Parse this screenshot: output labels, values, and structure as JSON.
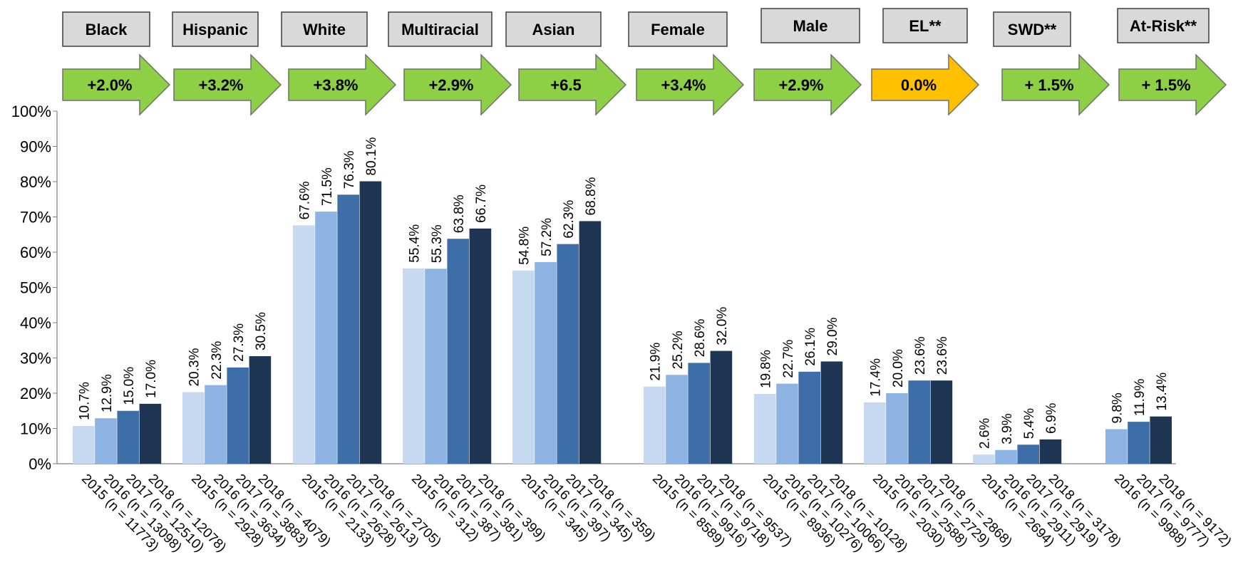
{
  "chart_data": {
    "type": "bar",
    "ylim": [
      0,
      100
    ],
    "yticks": [
      "0%",
      "10%",
      "20%",
      "30%",
      "40%",
      "50%",
      "60%",
      "70%",
      "80%",
      "90%",
      "100%"
    ],
    "grid": false,
    "colors": {
      "2015": "#c6d9f1",
      "2016": "#8db3e2",
      "2017": "#3e6ea8",
      "2018": "#1f3554",
      "arrow_up": "#8dd045",
      "arrow_flat": "#ffc000",
      "header_fill": "#d9d9d9"
    },
    "groups": [
      {
        "name": "Black",
        "change": "+2.0%",
        "trend": "up",
        "bars": [
          {
            "year": "2015",
            "label": "2015 (n = 11773)",
            "value": 10.7,
            "value_label": "10.7%"
          },
          {
            "year": "2016",
            "label": "2016 (n = 13098)",
            "value": 12.9,
            "value_label": "12.9%"
          },
          {
            "year": "2017",
            "label": "2017 (n = 12510)",
            "value": 15.0,
            "value_label": "15.0%"
          },
          {
            "year": "2018",
            "label": "2018 (n = 12078)",
            "value": 17.0,
            "value_label": "17.0%"
          }
        ]
      },
      {
        "name": "Hispanic",
        "change": "+3.2%",
        "trend": "up",
        "bars": [
          {
            "year": "2015",
            "label": "2015 (n = 2928)",
            "value": 20.3,
            "value_label": "20.3%"
          },
          {
            "year": "2016",
            "label": "2016 (n = 3634)",
            "value": 22.3,
            "value_label": "22.3%"
          },
          {
            "year": "2017",
            "label": "2017 (n = 3883)",
            "value": 27.3,
            "value_label": "27.3%"
          },
          {
            "year": "2018",
            "label": "2018 (n = 4079)",
            "value": 30.5,
            "value_label": "30.5%"
          }
        ]
      },
      {
        "name": "White",
        "change": "+3.8%",
        "trend": "up",
        "bars": [
          {
            "year": "2015",
            "label": "2015 (n = 2133)",
            "value": 67.6,
            "value_label": "67.6%"
          },
          {
            "year": "2016",
            "label": "2016 (n = 2628)",
            "value": 71.5,
            "value_label": "71.5%"
          },
          {
            "year": "2017",
            "label": "2017 (n = 2613)",
            "value": 76.3,
            "value_label": "76.3%"
          },
          {
            "year": "2018",
            "label": "2018 (n = 2705)",
            "value": 80.1,
            "value_label": "80.1%"
          }
        ]
      },
      {
        "name": "Multiracial",
        "change": "+2.9%",
        "trend": "up",
        "bars": [
          {
            "year": "2015",
            "label": "2015 (n = 312)",
            "value": 55.4,
            "value_label": "55.4%"
          },
          {
            "year": "2016",
            "label": "2016 (n = 387)",
            "value": 55.3,
            "value_label": "55.3%"
          },
          {
            "year": "2017",
            "label": "2017 (n = 381)",
            "value": 63.8,
            "value_label": "63.8%"
          },
          {
            "year": "2018",
            "label": "2018 (n = 399)",
            "value": 66.7,
            "value_label": "66.7%"
          }
        ]
      },
      {
        "name": "Asian",
        "change": "+6.5",
        "trend": "up",
        "bars": [
          {
            "year": "2015",
            "label": "2015 (n = 345)",
            "value": 54.8,
            "value_label": "54.8%"
          },
          {
            "year": "2016",
            "label": "2016 (n = 397)",
            "value": 57.2,
            "value_label": "57.2%"
          },
          {
            "year": "2017",
            "label": "2017 (n = 345)",
            "value": 62.3,
            "value_label": "62.3%"
          },
          {
            "year": "2018",
            "label": "2018 (n = 359)",
            "value": 68.8,
            "value_label": "68.8%"
          }
        ]
      },
      {
        "name": "Female",
        "change": "+3.4%",
        "trend": "up",
        "bars": [
          {
            "year": "2015",
            "label": "2015 (n = 8589)",
            "value": 21.9,
            "value_label": "21.9%"
          },
          {
            "year": "2016",
            "label": "2016 (n = 9916)",
            "value": 25.2,
            "value_label": "25.2%"
          },
          {
            "year": "2017",
            "label": "2017 (n = 9718)",
            "value": 28.6,
            "value_label": "28.6%"
          },
          {
            "year": "2018",
            "label": "2018 (n = 9537)",
            "value": 32.0,
            "value_label": "32.0%"
          }
        ]
      },
      {
        "name": "Male",
        "change": "+2.9%",
        "trend": "up",
        "bars": [
          {
            "year": "2015",
            "label": "2015 (n = 8936)",
            "value": 19.8,
            "value_label": "19.8%"
          },
          {
            "year": "2016",
            "label": "2016 (n = 10276)",
            "value": 22.7,
            "value_label": "22.7%"
          },
          {
            "year": "2017",
            "label": "2017 (n = 10066)",
            "value": 26.1,
            "value_label": "26.1%"
          },
          {
            "year": "2018",
            "label": "2018 (n = 10128)",
            "value": 29.0,
            "value_label": "29.0%"
          }
        ]
      },
      {
        "name": "EL**",
        "change": "0.0%",
        "trend": "flat",
        "bars": [
          {
            "year": "2015",
            "label": "2015 (n = 2030)",
            "value": 17.4,
            "value_label": "17.4%"
          },
          {
            "year": "2016",
            "label": "2016 (n = 2588)",
            "value": 20.0,
            "value_label": "20.0%"
          },
          {
            "year": "2017",
            "label": "2017 (n = 2729)",
            "value": 23.6,
            "value_label": "23.6%"
          },
          {
            "year": "2018",
            "label": "2018 (n = 2868)",
            "value": 23.6,
            "value_label": "23.6%"
          }
        ]
      },
      {
        "name": "SWD**",
        "change": "+ 1.5%",
        "trend": "up",
        "bars": [
          {
            "year": "2015",
            "label": "2015 (n = 2694)",
            "value": 2.6,
            "value_label": "2.6%"
          },
          {
            "year": "2016",
            "label": "2016 (n = 2911)",
            "value": 3.9,
            "value_label": "3.9%"
          },
          {
            "year": "2017",
            "label": "2017 (n = 2919)",
            "value": 5.4,
            "value_label": "5.4%"
          },
          {
            "year": "2018",
            "label": "2018 (n = 3178)",
            "value": 6.9,
            "value_label": "6.9%"
          }
        ]
      },
      {
        "name": "At-Risk**",
        "change": "+ 1.5%",
        "trend": "up",
        "bars": [
          {
            "year": "2016",
            "label": "2016 (n = 9988)",
            "value": 9.8,
            "value_label": "9.8%"
          },
          {
            "year": "2017",
            "label": "2017 (n = 9777)",
            "value": 11.9,
            "value_label": "11.9%"
          },
          {
            "year": "2018",
            "label": "2018 (n = 9172)",
            "value": 13.4,
            "value_label": "13.4%"
          }
        ]
      }
    ]
  }
}
